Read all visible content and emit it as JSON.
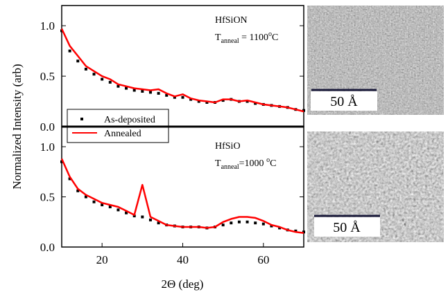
{
  "chart_data": [
    {
      "type": "line",
      "y_label": "Normalized Intensity (arb)",
      "annotation": {
        "material": "HfSiON",
        "symbol": "T",
        "subscript": "anneal",
        "value": " = 1100",
        "superscript": "o",
        "unit": "C"
      },
      "legend": "center-left",
      "xlim": [
        10,
        70
      ],
      "ylim": [
        0,
        1.2
      ],
      "yticks": [
        {
          "value": 0,
          "label": "0.0"
        },
        {
          "value": 0.5,
          "label": "0.5"
        },
        {
          "value": 1,
          "label": "1.0"
        }
      ],
      "x": [
        10,
        12,
        14,
        16,
        18,
        20,
        22,
        24,
        26,
        28,
        30,
        32,
        34,
        36,
        38,
        40,
        42,
        44,
        46,
        48,
        50,
        52,
        54,
        56,
        58,
        60,
        62,
        64,
        66,
        68,
        70
      ],
      "series": [
        {
          "name": "As-deposited",
          "color": "#000000",
          "mode": "markers",
          "values": [
            0.95,
            0.75,
            0.65,
            0.57,
            0.52,
            0.47,
            0.44,
            0.4,
            0.38,
            0.36,
            0.35,
            0.34,
            0.33,
            0.31,
            0.29,
            0.29,
            0.27,
            0.25,
            0.24,
            0.24,
            0.26,
            0.27,
            0.25,
            0.25,
            0.23,
            0.22,
            0.21,
            0.2,
            0.19,
            0.17,
            0.16
          ]
        },
        {
          "name": "Annealed",
          "color": "#ff0000",
          "mode": "line",
          "values": [
            0.97,
            0.8,
            0.7,
            0.6,
            0.55,
            0.5,
            0.47,
            0.42,
            0.4,
            0.38,
            0.37,
            0.36,
            0.37,
            0.33,
            0.3,
            0.32,
            0.28,
            0.26,
            0.25,
            0.24,
            0.27,
            0.27,
            0.25,
            0.26,
            0.24,
            0.22,
            0.21,
            0.2,
            0.19,
            0.17,
            0.15
          ]
        }
      ]
    },
    {
      "type": "line",
      "x_label": "2Θ (deg)",
      "annotation": {
        "material": "HfSiO",
        "symbol": "T",
        "subscript": "anneal",
        "value": "=1000 ",
        "superscript": "o",
        "unit": "C"
      },
      "xlim": [
        10,
        70
      ],
      "ylim": [
        0,
        1.2
      ],
      "xticks": [
        20,
        40,
        60
      ],
      "yticks": [
        {
          "value": 0,
          "label": "0.0"
        },
        {
          "value": 0.5,
          "label": "0.5"
        },
        {
          "value": 1,
          "label": "1.0"
        }
      ],
      "x": [
        10,
        12,
        14,
        16,
        18,
        20,
        22,
        24,
        26,
        28,
        30,
        32,
        34,
        36,
        38,
        40,
        42,
        44,
        46,
        48,
        50,
        52,
        54,
        56,
        58,
        60,
        62,
        64,
        66,
        68,
        70
      ],
      "series": [
        {
          "color": "#000000",
          "mode": "markers",
          "values": [
            0.85,
            0.68,
            0.56,
            0.5,
            0.45,
            0.42,
            0.4,
            0.37,
            0.34,
            0.31,
            0.3,
            0.27,
            0.24,
            0.22,
            0.21,
            0.2,
            0.2,
            0.2,
            0.19,
            0.2,
            0.22,
            0.24,
            0.25,
            0.25,
            0.24,
            0.23,
            0.21,
            0.19,
            0.17,
            0.16,
            0.15
          ]
        },
        {
          "color": "#ff0000",
          "mode": "line",
          "values": [
            0.88,
            0.7,
            0.58,
            0.52,
            0.48,
            0.44,
            0.42,
            0.4,
            0.36,
            0.32,
            0.62,
            0.3,
            0.26,
            0.22,
            0.21,
            0.2,
            0.2,
            0.2,
            0.19,
            0.2,
            0.25,
            0.28,
            0.3,
            0.3,
            0.29,
            0.26,
            0.22,
            0.2,
            0.17,
            0.15,
            0.14
          ]
        }
      ]
    }
  ],
  "images": [
    {
      "scale_label": "50 Å"
    },
    {
      "scale_label": "50 Å"
    }
  ]
}
